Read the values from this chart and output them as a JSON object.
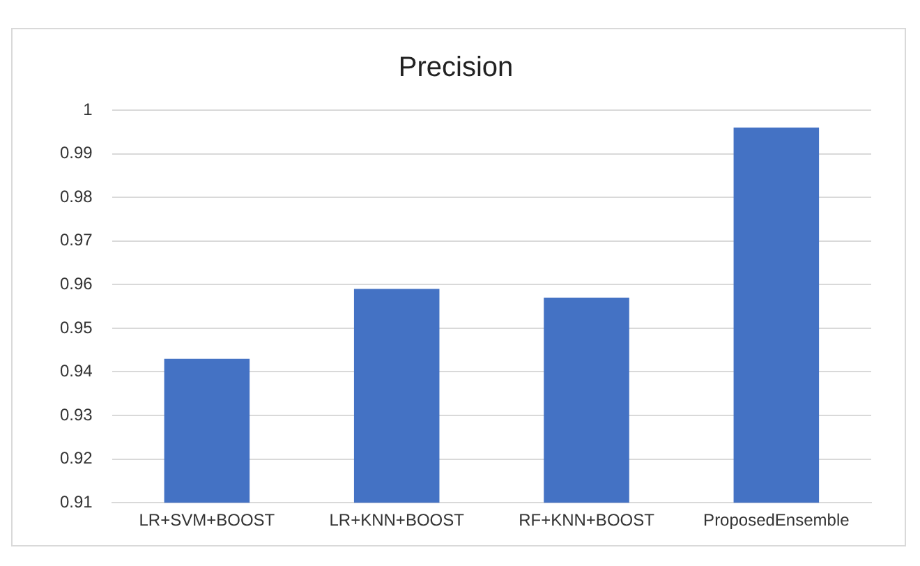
{
  "chart_data": {
    "type": "bar",
    "title": "Precision",
    "categories": [
      "LR+SVM+BOOST",
      "LR+KNN+BOOST",
      "RF+KNN+BOOST",
      "ProposedEnsemble"
    ],
    "values": [
      0.943,
      0.959,
      0.957,
      0.996
    ],
    "color": "#4472c4",
    "ylim": [
      0.91,
      1
    ],
    "yticks": [
      0.91,
      0.92,
      0.93,
      0.94,
      0.95,
      0.96,
      0.97,
      0.98,
      0.99,
      1
    ],
    "grid": "y"
  }
}
